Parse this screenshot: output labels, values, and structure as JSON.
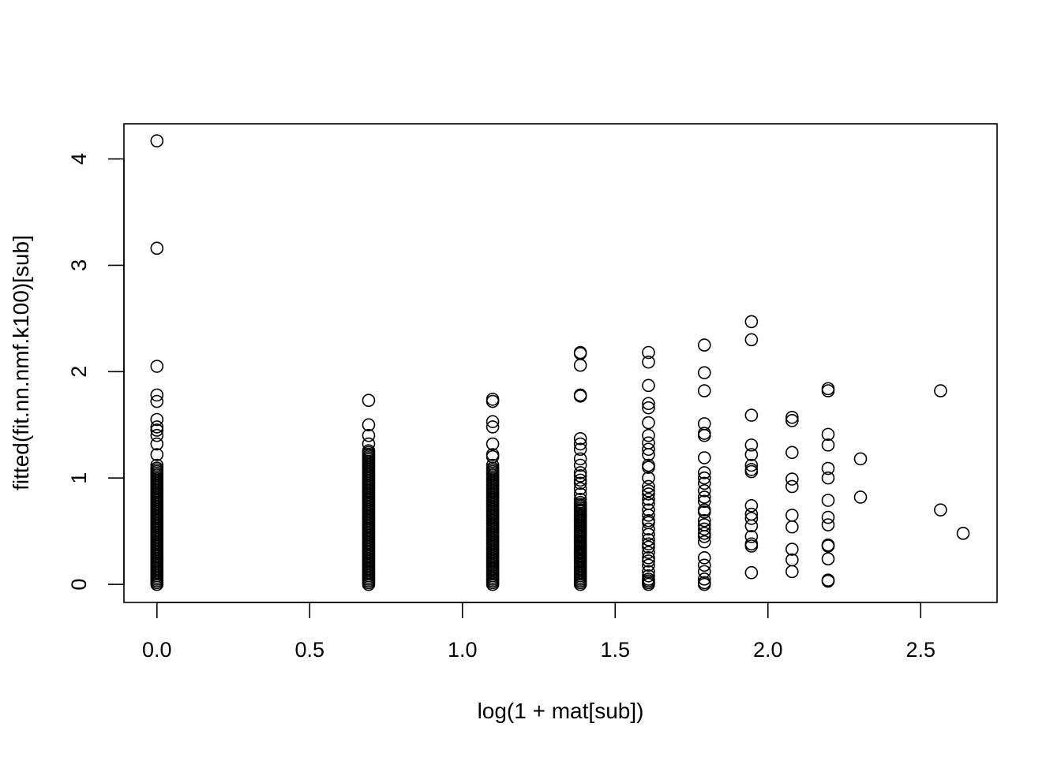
{
  "chart_data": {
    "type": "scatter",
    "title": "",
    "xlabel": "log(1 + mat[sub])",
    "ylabel": "fitted(fit.nn.nmf.k100)[sub]",
    "xlim": [
      -0.108,
      2.75
    ],
    "ylim": [
      -0.17,
      4.33
    ],
    "grid": false,
    "x_ticks": [
      0.0,
      0.5,
      1.0,
      1.5,
      2.0,
      2.5
    ],
    "x_tick_labels": [
      "0.0",
      "0.5",
      "1.0",
      "1.5",
      "2.0",
      "2.5"
    ],
    "y_ticks": [
      0,
      1,
      2,
      3,
      4
    ],
    "y_tick_labels": [
      "0",
      "1",
      "2",
      "3",
      "4"
    ],
    "groups": [
      {
        "x": 0.0,
        "dense_range": [
          0.0,
          1.1
        ],
        "y": [
          4.17,
          3.16,
          2.05,
          1.78,
          1.72,
          1.55,
          1.48,
          1.45,
          1.4,
          1.32,
          1.22,
          1.12
        ]
      },
      {
        "x": 0.693,
        "dense_range": [
          0.0,
          1.27
        ],
        "y": [
          1.73,
          1.5,
          1.4,
          1.32
        ]
      },
      {
        "x": 1.099,
        "dense_range": [
          0.0,
          1.1
        ],
        "y": [
          1.74,
          1.72,
          1.53,
          1.48,
          1.32,
          1.22,
          1.2,
          1.12
        ]
      },
      {
        "x": 1.386,
        "dense_range": [
          0.0,
          0.75
        ],
        "y": [
          2.18,
          2.17,
          2.06,
          1.78,
          1.77,
          1.37,
          1.32,
          1.27,
          1.18,
          1.12,
          1.05,
          1.02,
          0.98,
          0.95,
          0.9,
          0.85,
          0.8,
          0.77,
          0.7,
          0.65,
          0.6,
          0.55,
          0.5,
          0.45,
          0.4,
          0.35,
          0.3,
          0.27,
          0.22
        ]
      },
      {
        "x": 1.609,
        "dense_range": [
          0.0,
          0.05
        ],
        "y": [
          2.18,
          2.09,
          1.87,
          1.7,
          1.66,
          1.52,
          1.4,
          1.33,
          1.27,
          1.22,
          1.12,
          1.1,
          1.0,
          0.92,
          0.88,
          0.85,
          0.8,
          0.76,
          0.7,
          0.65,
          0.6,
          0.58,
          0.52,
          0.47,
          0.42,
          0.38,
          0.35,
          0.3,
          0.25,
          0.22,
          0.18,
          0.12,
          0.08
        ]
      },
      {
        "x": 1.792,
        "dense_range": [
          0.0,
          0.02
        ],
        "y": [
          2.25,
          1.99,
          1.82,
          1.51,
          1.42,
          1.4,
          1.19,
          1.05,
          1.0,
          0.95,
          0.88,
          0.82,
          0.78,
          0.7,
          0.68,
          0.6,
          0.56,
          0.52,
          0.48,
          0.45,
          0.4,
          0.25,
          0.18,
          0.12,
          0.05
        ]
      },
      {
        "x": 1.946,
        "y": [
          2.47,
          2.3,
          1.59,
          1.31,
          1.22,
          1.12,
          1.08,
          1.06,
          0.74,
          0.66,
          0.62,
          0.55,
          0.45,
          0.38,
          0.36,
          0.11
        ]
      },
      {
        "x": 2.079,
        "y": [
          1.57,
          1.54,
          1.24,
          0.99,
          0.92,
          0.65,
          0.54,
          0.33,
          0.23,
          0.12
        ]
      },
      {
        "x": 2.197,
        "y": [
          1.84,
          1.82,
          1.41,
          1.31,
          1.09,
          1.0,
          0.79,
          0.63,
          0.56,
          0.37,
          0.36,
          0.24,
          0.04,
          0.03
        ]
      },
      {
        "x": 2.303,
        "y": [
          1.18,
          0.82
        ]
      },
      {
        "x": 2.565,
        "y": [
          1.82,
          0.7
        ]
      },
      {
        "x": 2.639,
        "y": [
          0.48
        ]
      }
    ]
  }
}
